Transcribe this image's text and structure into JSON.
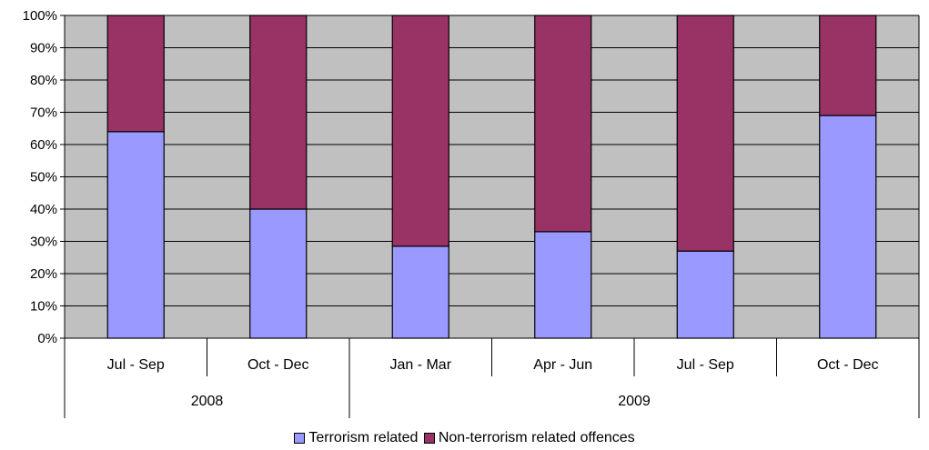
{
  "chart_data": {
    "type": "bar",
    "stacked": true,
    "percent_stacked": true,
    "groups": [
      {
        "label": "2008",
        "categories": [
          "Jul - Sep",
          "Oct - Dec"
        ]
      },
      {
        "label": "2009",
        "categories": [
          "Jan - Mar",
          "Apr - Jun",
          "Jul - Sep",
          "Oct - Dec"
        ]
      }
    ],
    "categories": [
      "Jul - Sep",
      "Oct - Dec",
      "Jan - Mar",
      "Apr - Jun",
      "Jul - Sep",
      "Oct - Dec"
    ],
    "series": [
      {
        "name": "Terrorism related",
        "values": [
          64,
          40,
          28.5,
          33,
          27,
          69
        ],
        "color": "#9999ff"
      },
      {
        "name": "Non-terrorism related offences",
        "values": [
          36,
          60,
          71.5,
          67,
          73,
          31
        ],
        "color": "#993366"
      }
    ],
    "yticks": [
      "0%",
      "10%",
      "20%",
      "30%",
      "40%",
      "50%",
      "60%",
      "70%",
      "80%",
      "90%",
      "100%"
    ],
    "ylim": [
      0,
      100
    ],
    "grid": true,
    "plot_background": "#c0c0c0",
    "legend_position": "bottom"
  },
  "legend": {
    "items": [
      {
        "label": "Terrorism related",
        "color": "#9999ff"
      },
      {
        "label": "Non-terrorism related offences",
        "color": "#993366"
      }
    ]
  }
}
